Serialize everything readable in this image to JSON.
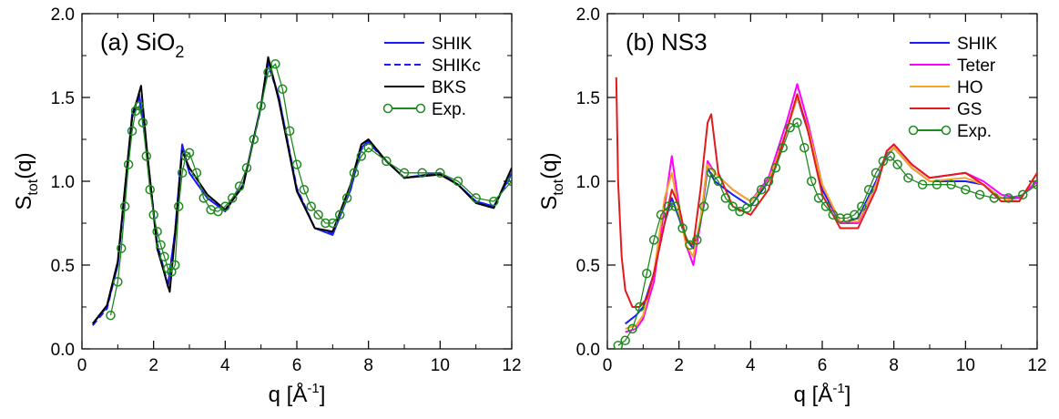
{
  "chart_data": [
    {
      "type": "line",
      "panel_label": "(a) SiO",
      "panel_label_sub": "2",
      "xlabel": {
        "base": "q [Å",
        "sup": "-1",
        "end": "]"
      },
      "ylabel": {
        "base": "S",
        "sub": "tot",
        "end": "(q)"
      },
      "xlim": [
        0,
        12
      ],
      "ylim": [
        0,
        2
      ],
      "xticks": [
        "0",
        "2",
        "4",
        "6",
        "8",
        "10",
        "12"
      ],
      "yticks": [
        "0.0",
        "0.5",
        "1.0",
        "1.5",
        "2.0"
      ],
      "legend_position": "top-right",
      "series": [
        {
          "name": "SHIK",
          "color": "#1a1aff",
          "style": "solid",
          "x": [
            0.3,
            0.7,
            1.0,
            1.2,
            1.4,
            1.6,
            1.8,
            2.1,
            2.4,
            2.6,
            2.8,
            3.0,
            3.5,
            4.0,
            4.5,
            5.0,
            5.2,
            5.5,
            6.0,
            6.5,
            7.0,
            7.5,
            7.8,
            8.0,
            8.5,
            9.0,
            10.0,
            10.5,
            11.0,
            11.5,
            12.0
          ],
          "y": [
            0.15,
            0.25,
            0.5,
            0.95,
            1.4,
            1.52,
            1.2,
            0.62,
            0.37,
            0.7,
            1.22,
            1.05,
            0.9,
            0.82,
            0.98,
            1.45,
            1.72,
            1.5,
            0.95,
            0.72,
            0.68,
            0.95,
            1.2,
            1.24,
            1.12,
            1.02,
            1.05,
            0.98,
            0.88,
            0.85,
            1.05
          ]
        },
        {
          "name": "SHIKc",
          "color": "#1a1aff",
          "style": "dashed",
          "x": [
            0.3,
            0.7,
            1.0,
            1.2,
            1.4,
            1.6,
            1.8,
            2.1,
            2.4,
            2.6,
            2.8,
            3.0,
            3.5,
            4.0,
            4.5,
            5.0,
            5.2,
            5.5,
            6.0,
            6.5,
            7.0,
            7.5,
            7.8,
            8.0,
            8.5,
            9.0,
            10.0,
            10.5,
            11.0,
            11.5,
            12.0
          ],
          "y": [
            0.14,
            0.24,
            0.5,
            0.93,
            1.38,
            1.5,
            1.2,
            0.63,
            0.38,
            0.7,
            1.2,
            1.05,
            0.9,
            0.83,
            0.98,
            1.44,
            1.7,
            1.5,
            0.96,
            0.72,
            0.69,
            0.95,
            1.19,
            1.23,
            1.12,
            1.02,
            1.05,
            0.98,
            0.88,
            0.85,
            1.04
          ]
        },
        {
          "name": "BKS",
          "color": "#000000",
          "style": "solid",
          "x": [
            0.3,
            0.7,
            1.0,
            1.2,
            1.4,
            1.65,
            1.8,
            2.1,
            2.45,
            2.6,
            2.8,
            3.0,
            3.5,
            4.0,
            4.5,
            5.0,
            5.2,
            5.5,
            6.0,
            6.5,
            7.0,
            7.5,
            7.8,
            8.0,
            8.5,
            9.0,
            10.0,
            10.5,
            11.0,
            11.5,
            12.0
          ],
          "y": [
            0.15,
            0.26,
            0.52,
            0.96,
            1.38,
            1.57,
            1.22,
            0.6,
            0.34,
            0.68,
            1.18,
            1.08,
            0.92,
            0.83,
            0.97,
            1.45,
            1.74,
            1.48,
            0.94,
            0.72,
            0.7,
            0.98,
            1.22,
            1.25,
            1.12,
            1.02,
            1.04,
            0.98,
            0.87,
            0.84,
            1.08
          ]
        },
        {
          "name": "Exp.",
          "color": "#1f8a1f",
          "style": "markers",
          "x": [
            0.8,
            1.0,
            1.1,
            1.2,
            1.3,
            1.4,
            1.5,
            1.6,
            1.7,
            1.8,
            1.9,
            2.0,
            2.1,
            2.2,
            2.3,
            2.4,
            2.5,
            2.6,
            2.7,
            2.8,
            2.9,
            3.0,
            3.2,
            3.4,
            3.6,
            3.8,
            4.0,
            4.2,
            4.4,
            4.6,
            4.8,
            5.0,
            5.2,
            5.4,
            5.6,
            5.8,
            6.0,
            6.2,
            6.4,
            6.6,
            6.8,
            7.0,
            7.2,
            7.4,
            7.6,
            7.8,
            8.0,
            8.5,
            9.0,
            9.5,
            10.0,
            10.5,
            11.0,
            11.5,
            12.0
          ],
          "y": [
            0.2,
            0.4,
            0.6,
            0.85,
            1.1,
            1.3,
            1.42,
            1.45,
            1.35,
            1.15,
            0.95,
            0.8,
            0.7,
            0.62,
            0.55,
            0.48,
            0.46,
            0.5,
            0.85,
            1.05,
            1.15,
            1.17,
            1.05,
            0.9,
            0.83,
            0.82,
            0.85,
            0.9,
            0.97,
            1.08,
            1.25,
            1.45,
            1.65,
            1.7,
            1.55,
            1.3,
            1.1,
            0.95,
            0.85,
            0.8,
            0.75,
            0.75,
            0.8,
            0.9,
            1.05,
            1.15,
            1.2,
            1.12,
            1.05,
            1.05,
            1.05,
            1.0,
            0.9,
            0.88,
            1.0
          ]
        }
      ]
    },
    {
      "type": "line",
      "panel_label": "(b) NS3",
      "panel_label_sub": "",
      "xlabel": {
        "base": "q [Å",
        "sup": "-1",
        "end": "]"
      },
      "ylabel": {
        "base": "S",
        "sub": "tot",
        "end": "(q)"
      },
      "xlim": [
        0,
        12
      ],
      "ylim": [
        0,
        2
      ],
      "xticks": [
        "0",
        "2",
        "4",
        "6",
        "8",
        "10",
        "12"
      ],
      "yticks": [
        "0.0",
        "0.5",
        "1.0",
        "1.5",
        "2.0"
      ],
      "legend_position": "top-right",
      "series": [
        {
          "name": "SHIK",
          "color": "#1a1aff",
          "style": "solid",
          "x": [
            0.5,
            0.8,
            1.0,
            1.3,
            1.6,
            1.8,
            2.0,
            2.2,
            2.4,
            2.6,
            2.8,
            3.0,
            3.5,
            4.0,
            4.5,
            5.0,
            5.3,
            5.6,
            6.0,
            6.5,
            7.0,
            7.5,
            7.8,
            8.0,
            8.5,
            9.0,
            10.0,
            10.5,
            11.0,
            11.5,
            12.0
          ],
          "y": [
            0.15,
            0.2,
            0.25,
            0.45,
            0.75,
            0.9,
            0.78,
            0.65,
            0.6,
            0.75,
            1.08,
            1.0,
            0.92,
            0.85,
            1.0,
            1.3,
            1.5,
            1.3,
            0.95,
            0.75,
            0.78,
            1.0,
            1.15,
            1.2,
            1.08,
            1.0,
            1.0,
            0.98,
            0.9,
            0.9,
            1.0
          ]
        },
        {
          "name": "Teter",
          "color": "#ff00ff",
          "style": "solid",
          "x": [
            0.5,
            0.8,
            1.0,
            1.3,
            1.6,
            1.8,
            2.0,
            2.2,
            2.4,
            2.6,
            2.8,
            3.0,
            3.5,
            4.0,
            4.5,
            5.0,
            5.3,
            5.6,
            6.0,
            6.5,
            7.0,
            7.5,
            7.8,
            8.0,
            8.5,
            9.0,
            10.0,
            10.5,
            11.0,
            11.5,
            12.0
          ],
          "y": [
            0.1,
            0.12,
            0.18,
            0.4,
            0.85,
            1.15,
            0.85,
            0.62,
            0.5,
            0.75,
            1.12,
            1.05,
            0.95,
            0.88,
            1.02,
            1.35,
            1.58,
            1.35,
            0.98,
            0.75,
            0.75,
            0.98,
            1.18,
            1.22,
            1.1,
            1.02,
            1.05,
            1.0,
            0.92,
            0.9,
            1.0
          ]
        },
        {
          "name": "HO",
          "color": "#f5a623",
          "style": "solid",
          "x": [
            0.5,
            0.8,
            1.0,
            1.3,
            1.6,
            1.8,
            2.0,
            2.2,
            2.4,
            2.6,
            2.8,
            3.0,
            3.5,
            4.0,
            4.5,
            5.0,
            5.3,
            5.6,
            6.0,
            6.5,
            7.0,
            7.5,
            7.8,
            8.0,
            8.5,
            9.0,
            10.0,
            10.5,
            11.0,
            11.5,
            12.0
          ],
          "y": [
            0.12,
            0.14,
            0.2,
            0.45,
            0.9,
            1.05,
            0.82,
            0.62,
            0.55,
            0.78,
            1.1,
            1.05,
            0.95,
            0.88,
            1.0,
            1.3,
            1.5,
            1.32,
            0.98,
            0.76,
            0.76,
            0.98,
            1.16,
            1.2,
            1.08,
            1.0,
            1.02,
            0.98,
            0.9,
            0.88,
            1.05
          ]
        },
        {
          "name": "GS",
          "color": "#e31a1c",
          "style": "solid",
          "x": [
            0.25,
            0.3,
            0.4,
            0.5,
            0.7,
            0.9,
            1.1,
            1.3,
            1.6,
            1.8,
            2.0,
            2.2,
            2.4,
            2.6,
            2.8,
            2.9,
            3.1,
            3.5,
            4.0,
            4.5,
            5.0,
            5.3,
            5.6,
            6.0,
            6.5,
            7.0,
            7.5,
            7.8,
            8.0,
            8.5,
            9.0,
            10.0,
            10.5,
            11.0,
            11.5,
            12.0
          ],
          "y": [
            1.62,
            1.0,
            0.55,
            0.35,
            0.25,
            0.25,
            0.3,
            0.45,
            0.75,
            0.95,
            0.85,
            0.65,
            0.62,
            0.95,
            1.35,
            1.4,
            1.05,
            0.85,
            0.8,
            0.95,
            1.3,
            1.52,
            1.3,
            0.92,
            0.72,
            0.72,
            0.95,
            1.18,
            1.22,
            1.1,
            1.02,
            1.05,
            0.98,
            0.88,
            0.88,
            1.05
          ]
        },
        {
          "name": "Exp.",
          "color": "#1f8a1f",
          "style": "markers",
          "x": [
            0.3,
            0.5,
            0.7,
            0.9,
            1.1,
            1.3,
            1.5,
            1.7,
            1.9,
            2.1,
            2.3,
            2.5,
            2.7,
            2.9,
            3.1,
            3.3,
            3.5,
            3.7,
            3.9,
            4.1,
            4.3,
            4.5,
            4.7,
            4.9,
            5.1,
            5.3,
            5.5,
            5.7,
            5.9,
            6.1,
            6.3,
            6.5,
            6.7,
            6.9,
            7.1,
            7.3,
            7.5,
            7.7,
            7.9,
            8.1,
            8.4,
            8.8,
            9.2,
            9.6,
            10.0,
            10.4,
            10.8,
            11.2,
            11.6,
            12.0
          ],
          "y": [
            0.02,
            0.05,
            0.12,
            0.25,
            0.45,
            0.65,
            0.8,
            0.85,
            0.85,
            0.72,
            0.62,
            0.65,
            0.85,
            1.05,
            1.0,
            0.9,
            0.85,
            0.82,
            0.84,
            0.88,
            0.95,
            1.0,
            1.08,
            1.2,
            1.32,
            1.35,
            1.2,
            1.0,
            0.9,
            0.85,
            0.8,
            0.78,
            0.78,
            0.8,
            0.85,
            0.95,
            1.05,
            1.12,
            1.15,
            1.1,
            1.02,
            0.98,
            0.98,
            0.98,
            0.95,
            0.92,
            0.9,
            0.9,
            0.92,
            0.98
          ]
        }
      ]
    }
  ]
}
